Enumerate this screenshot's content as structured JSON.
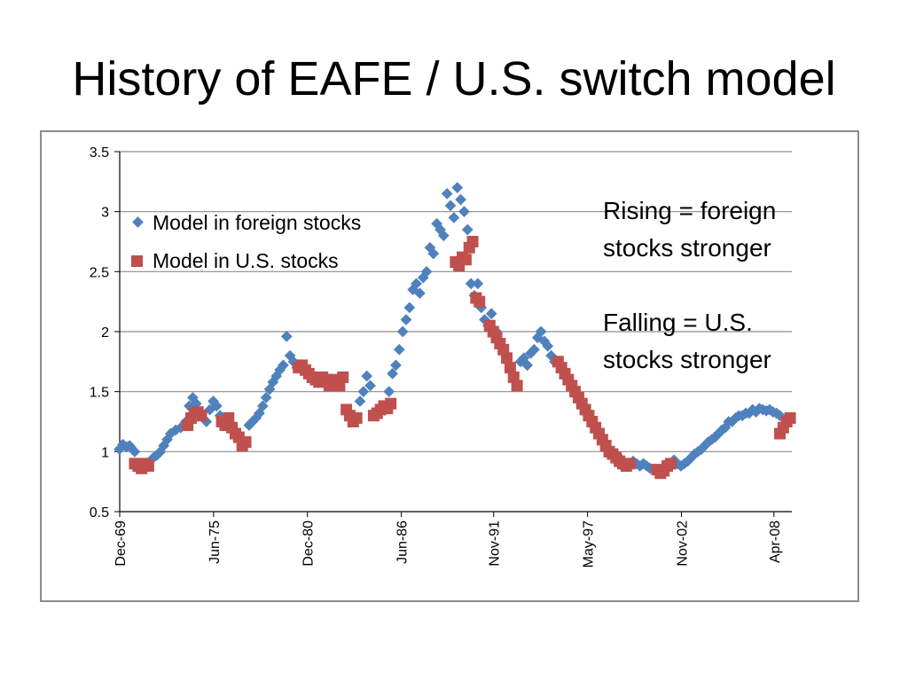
{
  "slide": {
    "title": "History of EAFE / U.S. switch model"
  },
  "colors": {
    "foreign": "#4f81bd",
    "us": "#c0504d",
    "grid": "#8c8c8c",
    "axis": "#000000"
  },
  "chart_data": {
    "type": "scatter",
    "title": "",
    "xlabel": "",
    "ylabel": "",
    "ylim": [
      0.5,
      3.5
    ],
    "yticks": [
      "0.5",
      "1",
      "1.5",
      "2",
      "2.5",
      "3",
      "3.5"
    ],
    "xlim": [
      1969.92,
      2009.3
    ],
    "xticks": [
      {
        "label": "Dec-69",
        "value": 1969.92
      },
      {
        "label": "Jun-75",
        "value": 1975.42
      },
      {
        "label": "Dec-80",
        "value": 1980.92
      },
      {
        "label": "Jun-86",
        "value": 1986.42
      },
      {
        "label": "Nov-91",
        "value": 1991.83
      },
      {
        "label": "May-97",
        "value": 1997.33
      },
      {
        "label": "Nov-02",
        "value": 2002.83
      },
      {
        "label": "Apr-08",
        "value": 2008.25
      }
    ],
    "grid": true,
    "legend_position": "top-left",
    "legend": [
      "Model in foreign stocks",
      "Model in U.S. stocks"
    ],
    "annotations": [
      "Rising = foreign",
      "stocks stronger",
      "Falling = U.S.",
      "stocks stronger"
    ],
    "series": [
      {
        "name": "Model in foreign stocks",
        "x": [
          1969.9,
          1970.1,
          1970.3,
          1970.5,
          1970.6,
          1970.8,
          1971.9,
          1972.1,
          1972.3,
          1972.5,
          1972.7,
          1972.9,
          1973.2,
          1973.5,
          1973.8,
          1974.0,
          1974.2,
          1974.4,
          1975.0,
          1975.2,
          1975.4,
          1975.6,
          1975.8,
          1977.5,
          1977.7,
          1977.9,
          1978.1,
          1978.3,
          1978.5,
          1978.7,
          1978.9,
          1979.1,
          1979.3,
          1979.5,
          1979.7,
          1979.9,
          1980.1,
          1980.3,
          1984.0,
          1984.2,
          1984.4,
          1984.6,
          1985.7,
          1985.9,
          1986.1,
          1986.3,
          1986.5,
          1986.7,
          1986.9,
          1987.1,
          1987.3,
          1987.5,
          1987.7,
          1987.9,
          1988.1,
          1988.3,
          1988.5,
          1988.7,
          1988.9,
          1989.1,
          1989.3,
          1989.5,
          1989.7,
          1989.9,
          1990.1,
          1990.3,
          1990.5,
          1990.7,
          1990.9,
          1991.1,
          1991.3,
          1991.5,
          1991.7,
          1992.0,
          1992.2,
          1993.4,
          1993.6,
          1993.8,
          1994.0,
          1994.2,
          1994.4,
          1994.6,
          1994.8,
          1995.0,
          1995.2,
          1995.4,
          1999.0,
          1999.2,
          1999.4,
          1999.6,
          1999.8,
          2000.0,
          2000.2,
          2000.4,
          2000.6,
          2000.8,
          2001.0,
          2001.2,
          2002.4,
          2002.6,
          2002.8,
          2003.0,
          2003.2,
          2003.4,
          2003.6,
          2003.8,
          2004.0,
          2004.2,
          2004.4,
          2004.6,
          2004.8,
          2005.0,
          2005.2,
          2005.4,
          2005.6,
          2005.8,
          2006.0,
          2006.2,
          2006.4,
          2006.6,
          2006.8,
          2007.0,
          2007.2,
          2007.4,
          2007.6,
          2007.8,
          2008.0,
          2008.2,
          2008.4,
          2008.6
        ],
        "y": [
          1.02,
          1.06,
          1.04,
          1.05,
          1.03,
          1.0,
          0.95,
          0.97,
          1.0,
          1.05,
          1.1,
          1.15,
          1.18,
          1.2,
          1.25,
          1.38,
          1.45,
          1.4,
          1.25,
          1.35,
          1.42,
          1.38,
          1.3,
          1.22,
          1.25,
          1.28,
          1.32,
          1.38,
          1.45,
          1.52,
          1.58,
          1.63,
          1.68,
          1.72,
          1.96,
          1.8,
          1.75,
          1.7,
          1.42,
          1.5,
          1.63,
          1.55,
          1.5,
          1.65,
          1.72,
          1.85,
          2.0,
          2.1,
          2.2,
          2.35,
          2.4,
          2.32,
          2.45,
          2.5,
          2.7,
          2.65,
          2.9,
          2.85,
          2.8,
          3.15,
          3.05,
          2.95,
          3.2,
          3.1,
          3.0,
          2.85,
          2.4,
          2.3,
          2.4,
          2.2,
          2.1,
          2.05,
          2.15,
          2.0,
          1.9,
          1.75,
          1.78,
          1.72,
          1.82,
          1.85,
          1.95,
          2.0,
          1.92,
          1.88,
          1.8,
          1.75,
          0.98,
          0.95,
          0.92,
          0.9,
          0.88,
          0.92,
          0.9,
          0.88,
          0.9,
          0.88,
          0.86,
          0.85,
          0.93,
          0.9,
          0.88,
          0.9,
          0.92,
          0.95,
          0.98,
          1.0,
          1.02,
          1.05,
          1.08,
          1.1,
          1.12,
          1.15,
          1.18,
          1.2,
          1.25,
          1.25,
          1.28,
          1.3,
          1.3,
          1.32,
          1.32,
          1.35,
          1.33,
          1.36,
          1.35,
          1.34,
          1.35,
          1.33,
          1.32,
          1.3
        ]
      },
      {
        "name": "Model in U.S. stocks",
        "x": [
          1970.8,
          1971.0,
          1971.2,
          1971.4,
          1971.6,
          1973.9,
          1974.1,
          1974.3,
          1974.5,
          1974.7,
          1975.9,
          1976.1,
          1976.3,
          1976.5,
          1976.7,
          1976.9,
          1977.1,
          1977.3,
          1980.4,
          1980.6,
          1980.8,
          1981.0,
          1981.2,
          1981.4,
          1981.6,
          1981.8,
          1982.0,
          1982.2,
          1982.4,
          1982.6,
          1982.8,
          1983.0,
          1983.2,
          1983.4,
          1983.6,
          1983.8,
          1984.8,
          1985.0,
          1985.2,
          1985.4,
          1985.6,
          1985.8,
          1989.6,
          1989.8,
          1990.0,
          1990.2,
          1990.4,
          1990.6,
          1990.8,
          1991.0,
          1991.6,
          1991.8,
          1992.0,
          1992.2,
          1992.4,
          1992.6,
          1992.8,
          1993.0,
          1993.2,
          1995.6,
          1995.8,
          1996.0,
          1996.2,
          1996.4,
          1996.6,
          1996.8,
          1997.0,
          1997.2,
          1997.4,
          1997.6,
          1997.8,
          1998.0,
          1998.2,
          1998.4,
          1998.6,
          1998.8,
          1999.0,
          1999.2,
          1999.4,
          1999.6,
          1999.8,
          2001.4,
          2001.6,
          2001.8,
          2002.0,
          2002.2,
          2008.6,
          2008.8,
          2009.0,
          2009.2
        ],
        "y": [
          0.9,
          0.88,
          0.86,
          0.9,
          0.88,
          1.22,
          1.28,
          1.32,
          1.33,
          1.3,
          1.25,
          1.22,
          1.28,
          1.2,
          1.15,
          1.12,
          1.05,
          1.08,
          1.7,
          1.72,
          1.68,
          1.65,
          1.62,
          1.6,
          1.58,
          1.62,
          1.6,
          1.55,
          1.58,
          1.6,
          1.55,
          1.62,
          1.35,
          1.3,
          1.25,
          1.28,
          1.3,
          1.32,
          1.35,
          1.38,
          1.36,
          1.4,
          2.58,
          2.55,
          2.62,
          2.6,
          2.7,
          2.75,
          2.28,
          2.25,
          2.05,
          2.0,
          1.95,
          1.9,
          1.85,
          1.78,
          1.7,
          1.62,
          1.55,
          1.75,
          1.7,
          1.65,
          1.6,
          1.55,
          1.5,
          1.45,
          1.4,
          1.35,
          1.3,
          1.25,
          1.2,
          1.15,
          1.1,
          1.05,
          1.0,
          0.98,
          0.95,
          0.92,
          0.9,
          0.88,
          0.9,
          0.85,
          0.82,
          0.84,
          0.88,
          0.9,
          1.15,
          1.2,
          1.25,
          1.28
        ]
      }
    ]
  }
}
